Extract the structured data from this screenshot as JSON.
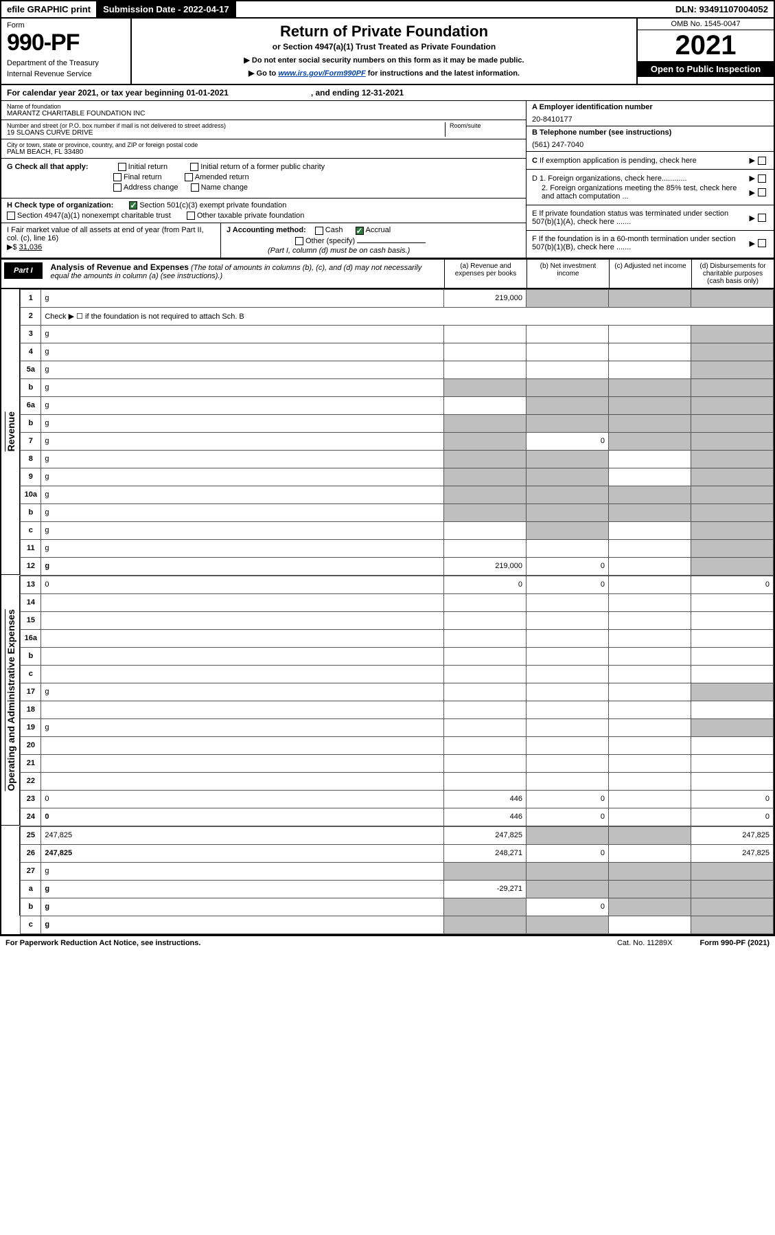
{
  "colors": {
    "black": "#000000",
    "white": "#ffffff",
    "grey_cell": "#bfbfbf",
    "link_blue": "#0645ad",
    "check_green": "#2a7a3c"
  },
  "topbar": {
    "efile": "efile GRAPHIC print",
    "submission_label": "Submission Date - 2022-04-17",
    "dln": "DLN: 93491107004052"
  },
  "header": {
    "form_label": "Form",
    "form_number": "990-PF",
    "dept1": "Department of the Treasury",
    "dept2": "Internal Revenue Service",
    "title": "Return of Private Foundation",
    "subtitle": "or Section 4947(a)(1) Trust Treated as Private Foundation",
    "note1": "▶ Do not enter social security numbers on this form as it may be made public.",
    "note2_prefix": "▶ Go to ",
    "note2_link": "www.irs.gov/Form990PF",
    "note2_suffix": " for instructions and the latest information.",
    "omb": "OMB No. 1545-0047",
    "year": "2021",
    "open": "Open to Public Inspection"
  },
  "calyear": {
    "text1": "For calendar year 2021, or tax year beginning 01-01-2021",
    "text2": ", and ending 12-31-2021"
  },
  "info": {
    "name_lbl": "Name of foundation",
    "name_val": "MARANTZ CHARITABLE FOUNDATION INC",
    "addr_lbl": "Number and street (or P.O. box number if mail is not delivered to street address)",
    "addr_val": "19 SLOANS CURVE DRIVE",
    "room_lbl": "Room/suite",
    "city_lbl": "City or town, state or province, country, and ZIP or foreign postal code",
    "city_val": "PALM BEACH, FL  33480",
    "a_lbl": "A Employer identification number",
    "a_val": "20-8410177",
    "b_lbl": "B Telephone number (see instructions)",
    "b_val": "(561) 247-7040",
    "c_lbl": "C If exemption application is pending, check here",
    "d1_lbl": "D 1. Foreign organizations, check here............",
    "d2_lbl": "2. Foreign organizations meeting the 85% test, check here and attach computation ...",
    "e_lbl": "E  If private foundation status was terminated under section 507(b)(1)(A), check here .......",
    "f_lbl": "F  If the foundation is in a 60-month termination under section 507(b)(1)(B), check here .......",
    "g_lbl": "G Check all that apply:",
    "g_opts": [
      "Initial return",
      "Initial return of a former public charity",
      "Final return",
      "Amended return",
      "Address change",
      "Name change"
    ],
    "h_lbl": "H Check type of organization:",
    "h1": "Section 501(c)(3) exempt private foundation",
    "h2": "Section 4947(a)(1) nonexempt charitable trust",
    "h3": "Other taxable private foundation",
    "i_lbl": "I Fair market value of all assets at end of year (from Part II, col. (c), line 16)",
    "i_val": "31,036",
    "i_arrow": "▶$",
    "j_lbl": "J Accounting method:",
    "j_cash": "Cash",
    "j_accrual": "Accrual",
    "j_other": "Other (specify)",
    "j_note": "(Part I, column (d) must be on cash basis.)"
  },
  "part1": {
    "badge": "Part I",
    "title": "Analysis of Revenue and Expenses",
    "title_note": " (The total of amounts in columns (b), (c), and (d) may not necessarily equal the amounts in column (a) (see instructions).)",
    "col_a": "(a)  Revenue and expenses per books",
    "col_b": "(b)  Net investment income",
    "col_c": "(c)  Adjusted net income",
    "col_d": "(d)  Disbursements for charitable purposes (cash basis only)"
  },
  "vlabels": {
    "revenue": "Revenue",
    "expenses": "Operating and Administrative Expenses"
  },
  "rows": [
    {
      "n": "1",
      "d": "g",
      "a": "219,000",
      "b": "g",
      "c": "g"
    },
    {
      "n": "2",
      "d": "Check ▶ ☐ if the foundation is not required to attach Sch. B",
      "nodata": true
    },
    {
      "n": "3",
      "d": "g",
      "a": "",
      "b": "",
      "c": ""
    },
    {
      "n": "4",
      "d": "g",
      "a": "",
      "b": "",
      "c": ""
    },
    {
      "n": "5a",
      "d": "g",
      "a": "",
      "b": "",
      "c": ""
    },
    {
      "n": "b",
      "d": "g",
      "inline": true,
      "a": "g",
      "b": "g",
      "c": "g"
    },
    {
      "n": "6a",
      "d": "g",
      "a": "",
      "b": "g",
      "c": "g"
    },
    {
      "n": "b",
      "d": "g",
      "inline": true,
      "a": "g",
      "b": "g",
      "c": "g"
    },
    {
      "n": "7",
      "d": "g",
      "a": "g",
      "b": "0",
      "c": "g"
    },
    {
      "n": "8",
      "d": "g",
      "a": "g",
      "b": "g",
      "c": ""
    },
    {
      "n": "9",
      "d": "g",
      "a": "g",
      "b": "g",
      "c": ""
    },
    {
      "n": "10a",
      "d": "g",
      "inline": true,
      "a": "g",
      "b": "g",
      "c": "g"
    },
    {
      "n": "b",
      "d": "g",
      "inline": true,
      "a": "g",
      "b": "g",
      "c": "g"
    },
    {
      "n": "c",
      "d": "g",
      "a": "",
      "b": "g",
      "c": ""
    },
    {
      "n": "11",
      "d": "g",
      "a": "",
      "b": "",
      "c": ""
    },
    {
      "n": "12",
      "d": "g",
      "bold": true,
      "a": "219,000",
      "b": "0",
      "c": ""
    },
    {
      "n": "13",
      "d": "0",
      "a": "0",
      "b": "0",
      "c": ""
    },
    {
      "n": "14",
      "d": "",
      "a": "",
      "b": "",
      "c": ""
    },
    {
      "n": "15",
      "d": "",
      "a": "",
      "b": "",
      "c": ""
    },
    {
      "n": "16a",
      "d": "",
      "a": "",
      "b": "",
      "c": ""
    },
    {
      "n": "b",
      "d": "",
      "a": "",
      "b": "",
      "c": ""
    },
    {
      "n": "c",
      "d": "",
      "a": "",
      "b": "",
      "c": ""
    },
    {
      "n": "17",
      "d": "g",
      "a": "",
      "b": "",
      "c": ""
    },
    {
      "n": "18",
      "d": "",
      "a": "",
      "b": "",
      "c": ""
    },
    {
      "n": "19",
      "d": "g",
      "a": "",
      "b": "",
      "c": ""
    },
    {
      "n": "20",
      "d": "",
      "a": "",
      "b": "",
      "c": ""
    },
    {
      "n": "21",
      "d": "",
      "a": "",
      "b": "",
      "c": ""
    },
    {
      "n": "22",
      "d": "",
      "a": "",
      "b": "",
      "c": ""
    },
    {
      "n": "23",
      "d": "0",
      "a": "446",
      "b": "0",
      "c": ""
    },
    {
      "n": "24",
      "d": "0",
      "bold": true,
      "a": "446",
      "b": "0",
      "c": ""
    },
    {
      "n": "25",
      "d": "247,825",
      "a": "247,825",
      "b": "g",
      "c": "g"
    },
    {
      "n": "26",
      "d": "247,825",
      "bold": true,
      "a": "248,271",
      "b": "0",
      "c": ""
    },
    {
      "n": "27",
      "d": "g",
      "a": "g",
      "b": "g",
      "c": "g"
    },
    {
      "n": "a",
      "d": "g",
      "bold": true,
      "a": "-29,271",
      "b": "g",
      "c": "g"
    },
    {
      "n": "b",
      "d": "g",
      "bold": true,
      "a": "g",
      "b": "0",
      "c": "g"
    },
    {
      "n": "c",
      "d": "g",
      "bold": true,
      "a": "g",
      "b": "g",
      "c": ""
    }
  ],
  "footer": {
    "left": "For Paperwork Reduction Act Notice, see instructions.",
    "cat": "Cat. No. 11289X",
    "form": "Form 990-PF (2021)"
  }
}
